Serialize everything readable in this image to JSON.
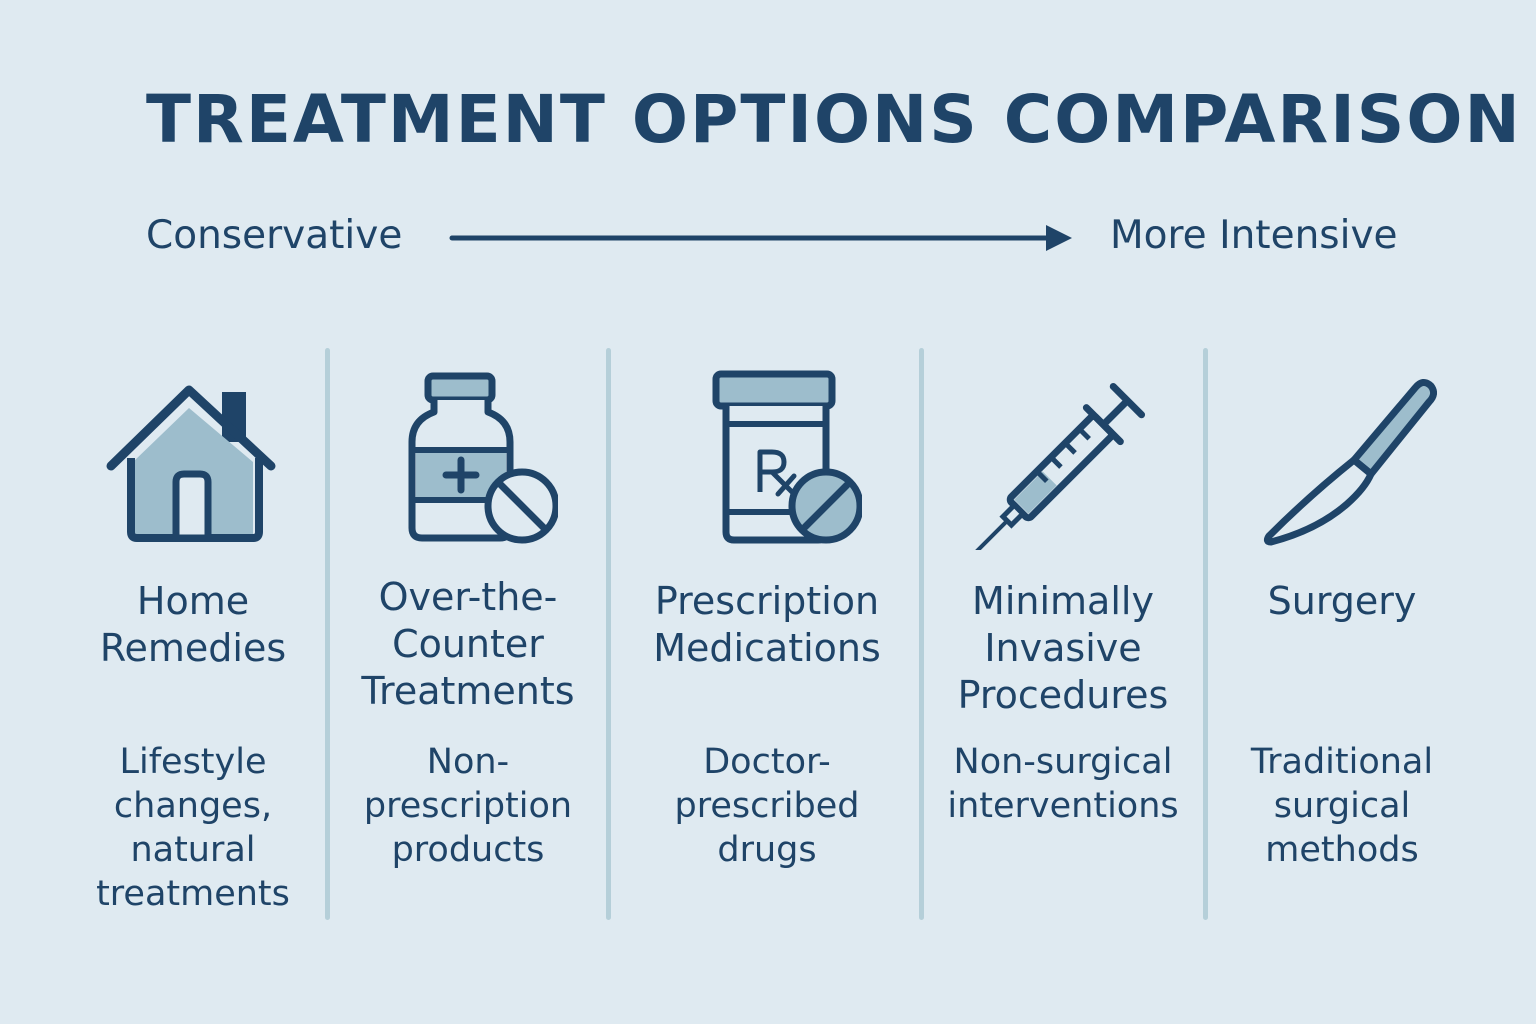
{
  "title": "TREATMENT OPTIONS COMPARISON",
  "scale": {
    "left_label": "Conservative",
    "right_label": "More Intensive"
  },
  "colors": {
    "background": "#dfeaf1",
    "text": "#1f4468",
    "icon_fill": "#9dbdcc",
    "divider": "#b5cfd9"
  },
  "options": [
    {
      "icon": "house-icon",
      "title": "Home Remedies",
      "description": "Lifestyle changes, natural treatments"
    },
    {
      "icon": "medicine-bottle-icon",
      "title": "Over-the-Counter Treatments",
      "description": "Non-prescription products"
    },
    {
      "icon": "prescription-bottle-icon",
      "title": "Prescription Medications",
      "description": "Doctor-prescribed drugs"
    },
    {
      "icon": "syringe-icon",
      "title": "Minimally Invasive Procedures",
      "description": "Non-surgical interventions"
    },
    {
      "icon": "scalpel-icon",
      "title": "Surgery",
      "description": "Traditional surgical methods"
    }
  ]
}
